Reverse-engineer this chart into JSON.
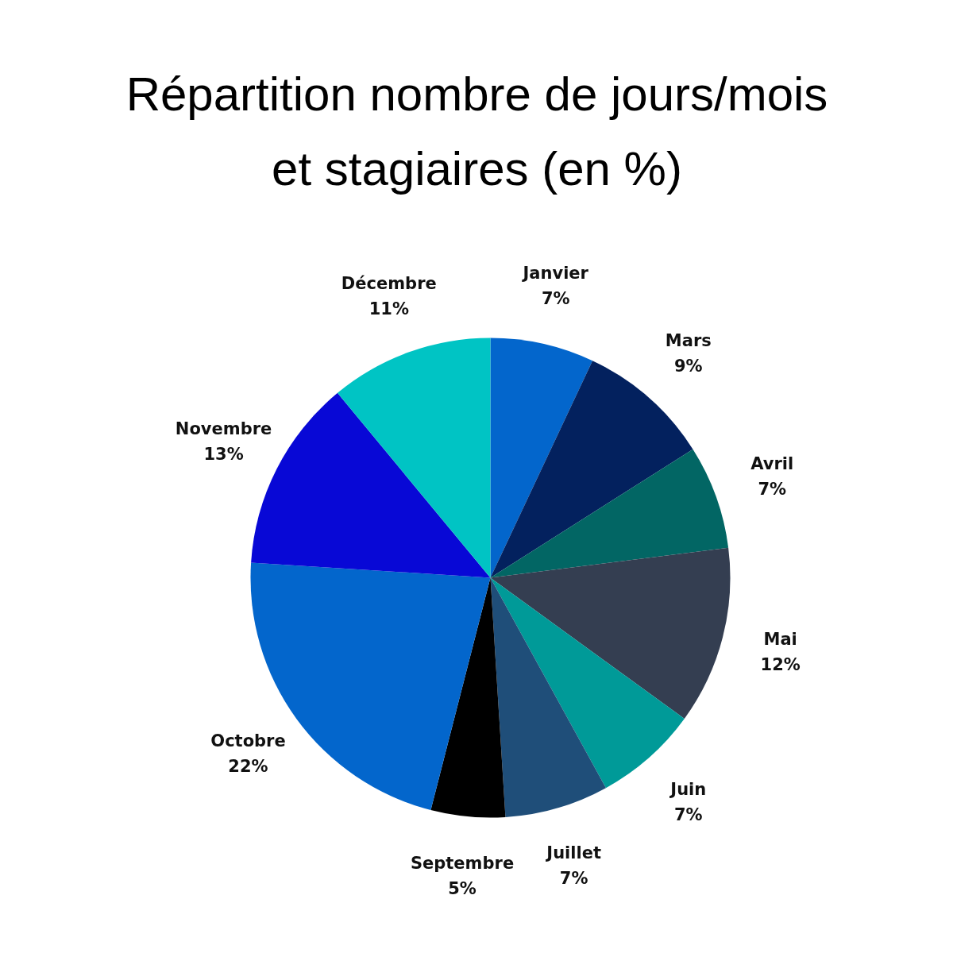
{
  "chart_data": {
    "type": "pie",
    "title": "Répartition nombre de jours/mois et stagiaires (en %)",
    "categories": [
      "Janvier",
      "Mars",
      "Avril",
      "Mai",
      "Juin",
      "Juillet",
      "Septembre",
      "Octobre",
      "Novembre",
      "Décembre"
    ],
    "values": [
      7,
      9,
      7,
      12,
      7,
      7,
      5,
      22,
      13,
      11
    ],
    "value_labels": [
      "7%",
      "9%",
      "7%",
      "12%",
      "7%",
      "7%",
      "5%",
      "22%",
      "13%",
      "11%"
    ],
    "colors": [
      "#0366cc",
      "#03215e",
      "#026664",
      "#343e51",
      "#009a98",
      "#1f4e79",
      "#000000",
      "#0366cc",
      "#0808d6",
      "#00c4c4"
    ]
  }
}
